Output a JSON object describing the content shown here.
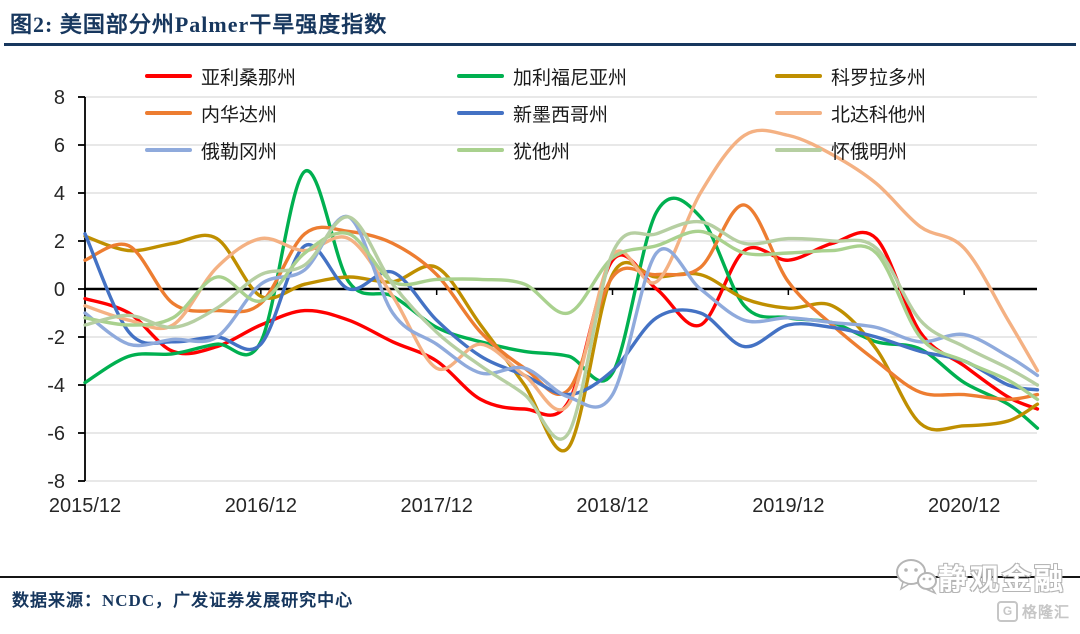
{
  "header": {
    "title": "图2: 美国部分州Palmer干旱强度指数"
  },
  "footer": {
    "source": "数据来源：NCDC，广发证券发展研究中心"
  },
  "watermark": {
    "name": "静观金融",
    "logo_letter": "G",
    "logo_text": "格隆汇"
  },
  "chart_data": {
    "type": "line",
    "title": "美国部分州Palmer干旱强度指数",
    "xlabel": "",
    "ylabel": "",
    "ylim": [
      -8,
      8
    ],
    "grid": true,
    "legend_position": "top",
    "yticks": [
      8,
      6,
      4,
      2,
      0,
      -2,
      -4,
      -6,
      -8
    ],
    "xticks": [
      "2015/12",
      "2016/12",
      "2017/12",
      "2018/12",
      "2019/12",
      "2020/12"
    ],
    "x": [
      "2015/12",
      "2016/03",
      "2016/06",
      "2016/09",
      "2016/12",
      "2017/03",
      "2017/06",
      "2017/09",
      "2017/12",
      "2018/03",
      "2018/06",
      "2018/09",
      "2018/12",
      "2019/03",
      "2019/06",
      "2019/09",
      "2019/12",
      "2020/03",
      "2020/06",
      "2020/09",
      "2020/12",
      "2021/03",
      "2021/05"
    ],
    "series": [
      {
        "name": "亚利桑那州",
        "color": "#FF0000",
        "values": [
          -0.4,
          -1.0,
          -2.6,
          -2.4,
          -1.5,
          -0.9,
          -1.3,
          -2.2,
          -3.0,
          -4.6,
          -5.0,
          -4.7,
          1.2,
          0.0,
          -1.5,
          1.6,
          1.2,
          1.9,
          2.1,
          -1.8,
          -3.2,
          -4.5,
          -5.0
        ]
      },
      {
        "name": "加利福尼亚州",
        "color": "#00B050",
        "values": [
          -3.9,
          -2.8,
          -2.7,
          -2.3,
          -2.2,
          4.9,
          0.3,
          -0.3,
          -1.6,
          -2.2,
          -2.6,
          -2.8,
          -3.5,
          3.2,
          3.0,
          -0.7,
          -1.2,
          -1.4,
          -2.2,
          -2.5,
          -3.9,
          -4.8,
          -5.8
        ]
      },
      {
        "name": "科罗拉多州",
        "color": "#BF8F00",
        "values": [
          2.2,
          1.6,
          1.9,
          2.1,
          -0.3,
          0.2,
          0.5,
          0.3,
          0.9,
          -1.5,
          -4.0,
          -6.6,
          0.6,
          0.5,
          0.6,
          -0.4,
          -0.8,
          -0.7,
          -2.5,
          -5.6,
          -5.7,
          -5.5,
          -4.8
        ]
      },
      {
        "name": "内华达州",
        "color": "#ED7D31",
        "values": [
          1.2,
          1.8,
          -0.6,
          -0.9,
          -0.6,
          2.3,
          2.4,
          1.9,
          0.6,
          -1.8,
          -3.3,
          -4.2,
          0.5,
          0.6,
          0.9,
          3.5,
          0.3,
          -1.5,
          -3.0,
          -4.3,
          -4.4,
          -4.6,
          -4.4
        ]
      },
      {
        "name": "新墨西哥州",
        "color": "#4472C4",
        "values": [
          2.3,
          -1.8,
          -2.2,
          -2.0,
          -2.3,
          1.8,
          0.0,
          0.7,
          -1.3,
          -2.8,
          -3.6,
          -4.4,
          -3.4,
          -1.2,
          -1.0,
          -2.4,
          -1.5,
          -1.6,
          -2.0,
          -2.6,
          -3.0,
          -4.0,
          -4.2
        ]
      },
      {
        "name": "北达科他州",
        "color": "#F4B183",
        "values": [
          -0.7,
          -1.3,
          -1.5,
          0.9,
          2.1,
          1.6,
          2.1,
          -0.3,
          -3.3,
          -2.3,
          -3.6,
          -4.8,
          1.4,
          0.3,
          4.0,
          6.4,
          6.4,
          5.6,
          4.4,
          2.6,
          1.7,
          -1.3,
          -3.4
        ]
      },
      {
        "name": "俄勒冈州",
        "color": "#8FAADC",
        "values": [
          -1.0,
          -2.3,
          -2.1,
          -2.0,
          0.2,
          0.8,
          3.0,
          -1.0,
          -2.3,
          -3.5,
          -3.3,
          -4.5,
          -4.4,
          1.5,
          0.0,
          -1.3,
          -1.2,
          -1.4,
          -1.6,
          -2.2,
          -1.9,
          -2.8,
          -3.6
        ]
      },
      {
        "name": "犹他州",
        "color": "#A9D18E",
        "values": [
          -1.2,
          -1.5,
          -1.2,
          0.5,
          -0.5,
          1.5,
          2.3,
          0.3,
          0.4,
          0.4,
          0.2,
          -1.0,
          1.3,
          1.8,
          2.4,
          1.5,
          1.5,
          1.6,
          1.5,
          -2.0,
          -3.0,
          -3.8,
          -4.6
        ]
      },
      {
        "name": "怀俄明州",
        "color": "#B6CFA2",
        "values": [
          -1.5,
          -1.1,
          -1.6,
          -0.8,
          0.6,
          1.0,
          3.0,
          0.2,
          -1.8,
          -3.2,
          -4.4,
          -6.0,
          1.5,
          2.3,
          2.8,
          1.9,
          2.1,
          2.0,
          1.7,
          -1.3,
          -2.4,
          -3.3,
          -4.0
        ]
      }
    ]
  }
}
